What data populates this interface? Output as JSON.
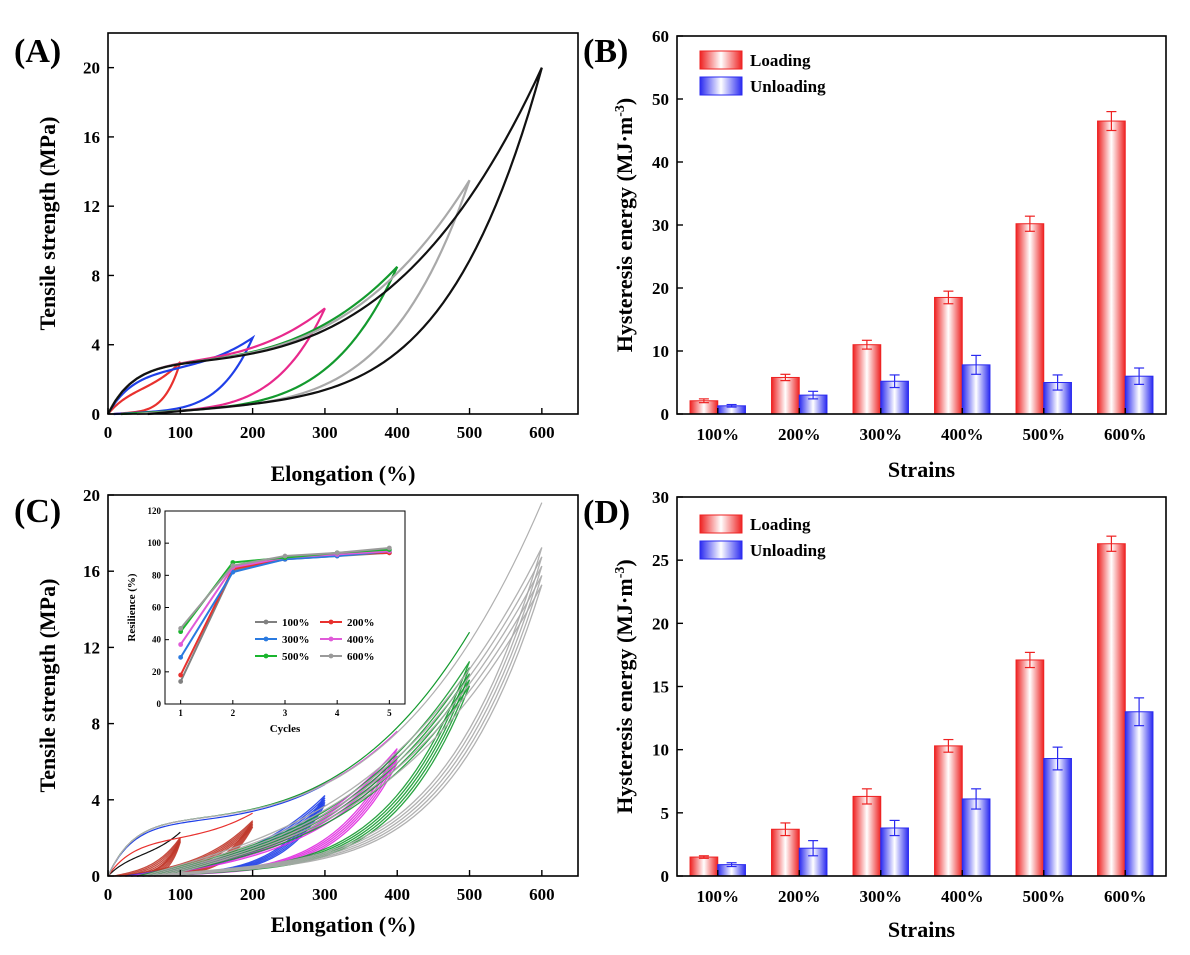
{
  "chart_data": [
    {
      "panel": "(A)",
      "type": "line",
      "xlabel": "Elongation (%)",
      "ylabel": "Tensile strength (MPa)",
      "xlim": [
        0,
        650
      ],
      "ylim": [
        0,
        22
      ],
      "xticks": [
        0,
        100,
        200,
        300,
        400,
        500,
        600
      ],
      "yticks": [
        0,
        4,
        8,
        12,
        16,
        20
      ],
      "loops": [
        {
          "strain": 100,
          "peak": 3.0,
          "color": "#e8312e"
        },
        {
          "strain": 200,
          "peak": 4.4,
          "color": "#1f3fe8"
        },
        {
          "strain": 300,
          "peak": 6.1,
          "color": "#e8298c"
        },
        {
          "strain": 400,
          "peak": 8.5,
          "color": "#139a2e"
        },
        {
          "strain": 500,
          "peak": 13.5,
          "color": "#a9a9a9"
        },
        {
          "strain": 600,
          "peak": 20.0,
          "color": "#111111"
        }
      ]
    },
    {
      "panel": "(B)",
      "type": "bar",
      "xlabel": "Strains",
      "ylabel": "Hysteresis energy (MJ·m",
      "ylabel_sup": "-3",
      "ylabel_end": ")",
      "categories": [
        "100%",
        "200%",
        "300%",
        "400%",
        "500%",
        "600%"
      ],
      "ylim": [
        0,
        60
      ],
      "yticks": [
        0,
        10,
        20,
        30,
        40,
        50,
        60
      ],
      "series": [
        {
          "name": "Loading",
          "color": "#ee2222",
          "values": [
            2.1,
            5.8,
            11.0,
            18.5,
            30.2,
            46.5
          ],
          "errors": [
            0.3,
            0.5,
            0.7,
            1.0,
            1.2,
            1.5
          ]
        },
        {
          "name": "Unloading",
          "color": "#2a2af0",
          "values": [
            1.3,
            3.0,
            5.2,
            7.8,
            5.0,
            6.0
          ],
          "errors": [
            0.2,
            0.6,
            1.0,
            1.5,
            1.2,
            1.3
          ]
        }
      ]
    },
    {
      "panel": "(C)",
      "type": "line",
      "xlabel": "Elongation (%)",
      "ylabel": "Tensile strength (MPa)",
      "xlim": [
        0,
        650
      ],
      "ylim": [
        0,
        20
      ],
      "xticks": [
        0,
        100,
        200,
        300,
        400,
        500,
        600
      ],
      "yticks": [
        0,
        4,
        8,
        12,
        16,
        20
      ],
      "loops": [
        {
          "strain": 100,
          "peak": 2.3,
          "color": "#111111",
          "cycle_color": "#c0392b"
        },
        {
          "strain": 200,
          "peak": 3.3,
          "color": "#e8312e",
          "cycle_color": "#c0392b"
        },
        {
          "strain": 300,
          "peak": 4.8,
          "color": "#1f3fe8",
          "cycle_color": "#1f3fe8"
        },
        {
          "strain": 400,
          "peak": 7.6,
          "color": "#d83ed8",
          "cycle_color": "#e02be0"
        },
        {
          "strain": 500,
          "peak": 12.8,
          "color": "#139a2e",
          "cycle_color": "#139a2e"
        },
        {
          "strain": 600,
          "peak": 19.6,
          "color": "#b0b0b0",
          "cycle_color": "#a9a9a9"
        }
      ],
      "inset": {
        "type": "line",
        "xlabel": "Cycles",
        "ylabel": "Resilience (%)",
        "xlim": [
          0.7,
          5.3
        ],
        "ylim": [
          0,
          120
        ],
        "xticks": [
          1,
          2,
          3,
          4,
          5
        ],
        "yticks": [
          0,
          20,
          40,
          60,
          80,
          100,
          120
        ],
        "x": [
          1,
          2,
          3,
          4,
          5
        ],
        "series": [
          {
            "name": "100%",
            "color": "#808080",
            "values": [
              14,
              83,
              90,
              92,
              94
            ]
          },
          {
            "name": "200%",
            "color": "#e8312e",
            "values": [
              18,
              84,
              90,
              93,
              94
            ]
          },
          {
            "name": "300%",
            "color": "#2a7ae0",
            "values": [
              29,
              82,
              90,
              92,
              95
            ]
          },
          {
            "name": "400%",
            "color": "#e05ad8",
            "values": [
              37,
              85,
              91,
              93,
              95
            ]
          },
          {
            "name": "500%",
            "color": "#1ab52e",
            "values": [
              45,
              88,
              91,
              94,
              96
            ]
          },
          {
            "name": "600%",
            "color": "#9a9a9a",
            "values": [
              47,
              86,
              92,
              94,
              97
            ]
          }
        ]
      }
    },
    {
      "panel": "(D)",
      "type": "bar",
      "xlabel": "Strains",
      "ylabel": "Hysteresis energy (MJ·m",
      "ylabel_sup": "-3",
      "ylabel_end": ")",
      "categories": [
        "100%",
        "200%",
        "300%",
        "400%",
        "500%",
        "600%"
      ],
      "ylim": [
        0,
        30
      ],
      "yticks": [
        0,
        5,
        10,
        15,
        20,
        25,
        30
      ],
      "series": [
        {
          "name": "Loading",
          "color": "#ee2222",
          "values": [
            1.5,
            3.7,
            6.3,
            10.3,
            17.1,
            26.3
          ],
          "errors": [
            0.1,
            0.5,
            0.6,
            0.5,
            0.6,
            0.6
          ]
        },
        {
          "name": "Unloading",
          "color": "#2a2af0",
          "values": [
            0.9,
            2.2,
            3.8,
            6.1,
            9.3,
            13.0
          ],
          "errors": [
            0.15,
            0.6,
            0.6,
            0.8,
            0.9,
            1.1
          ]
        }
      ]
    }
  ]
}
